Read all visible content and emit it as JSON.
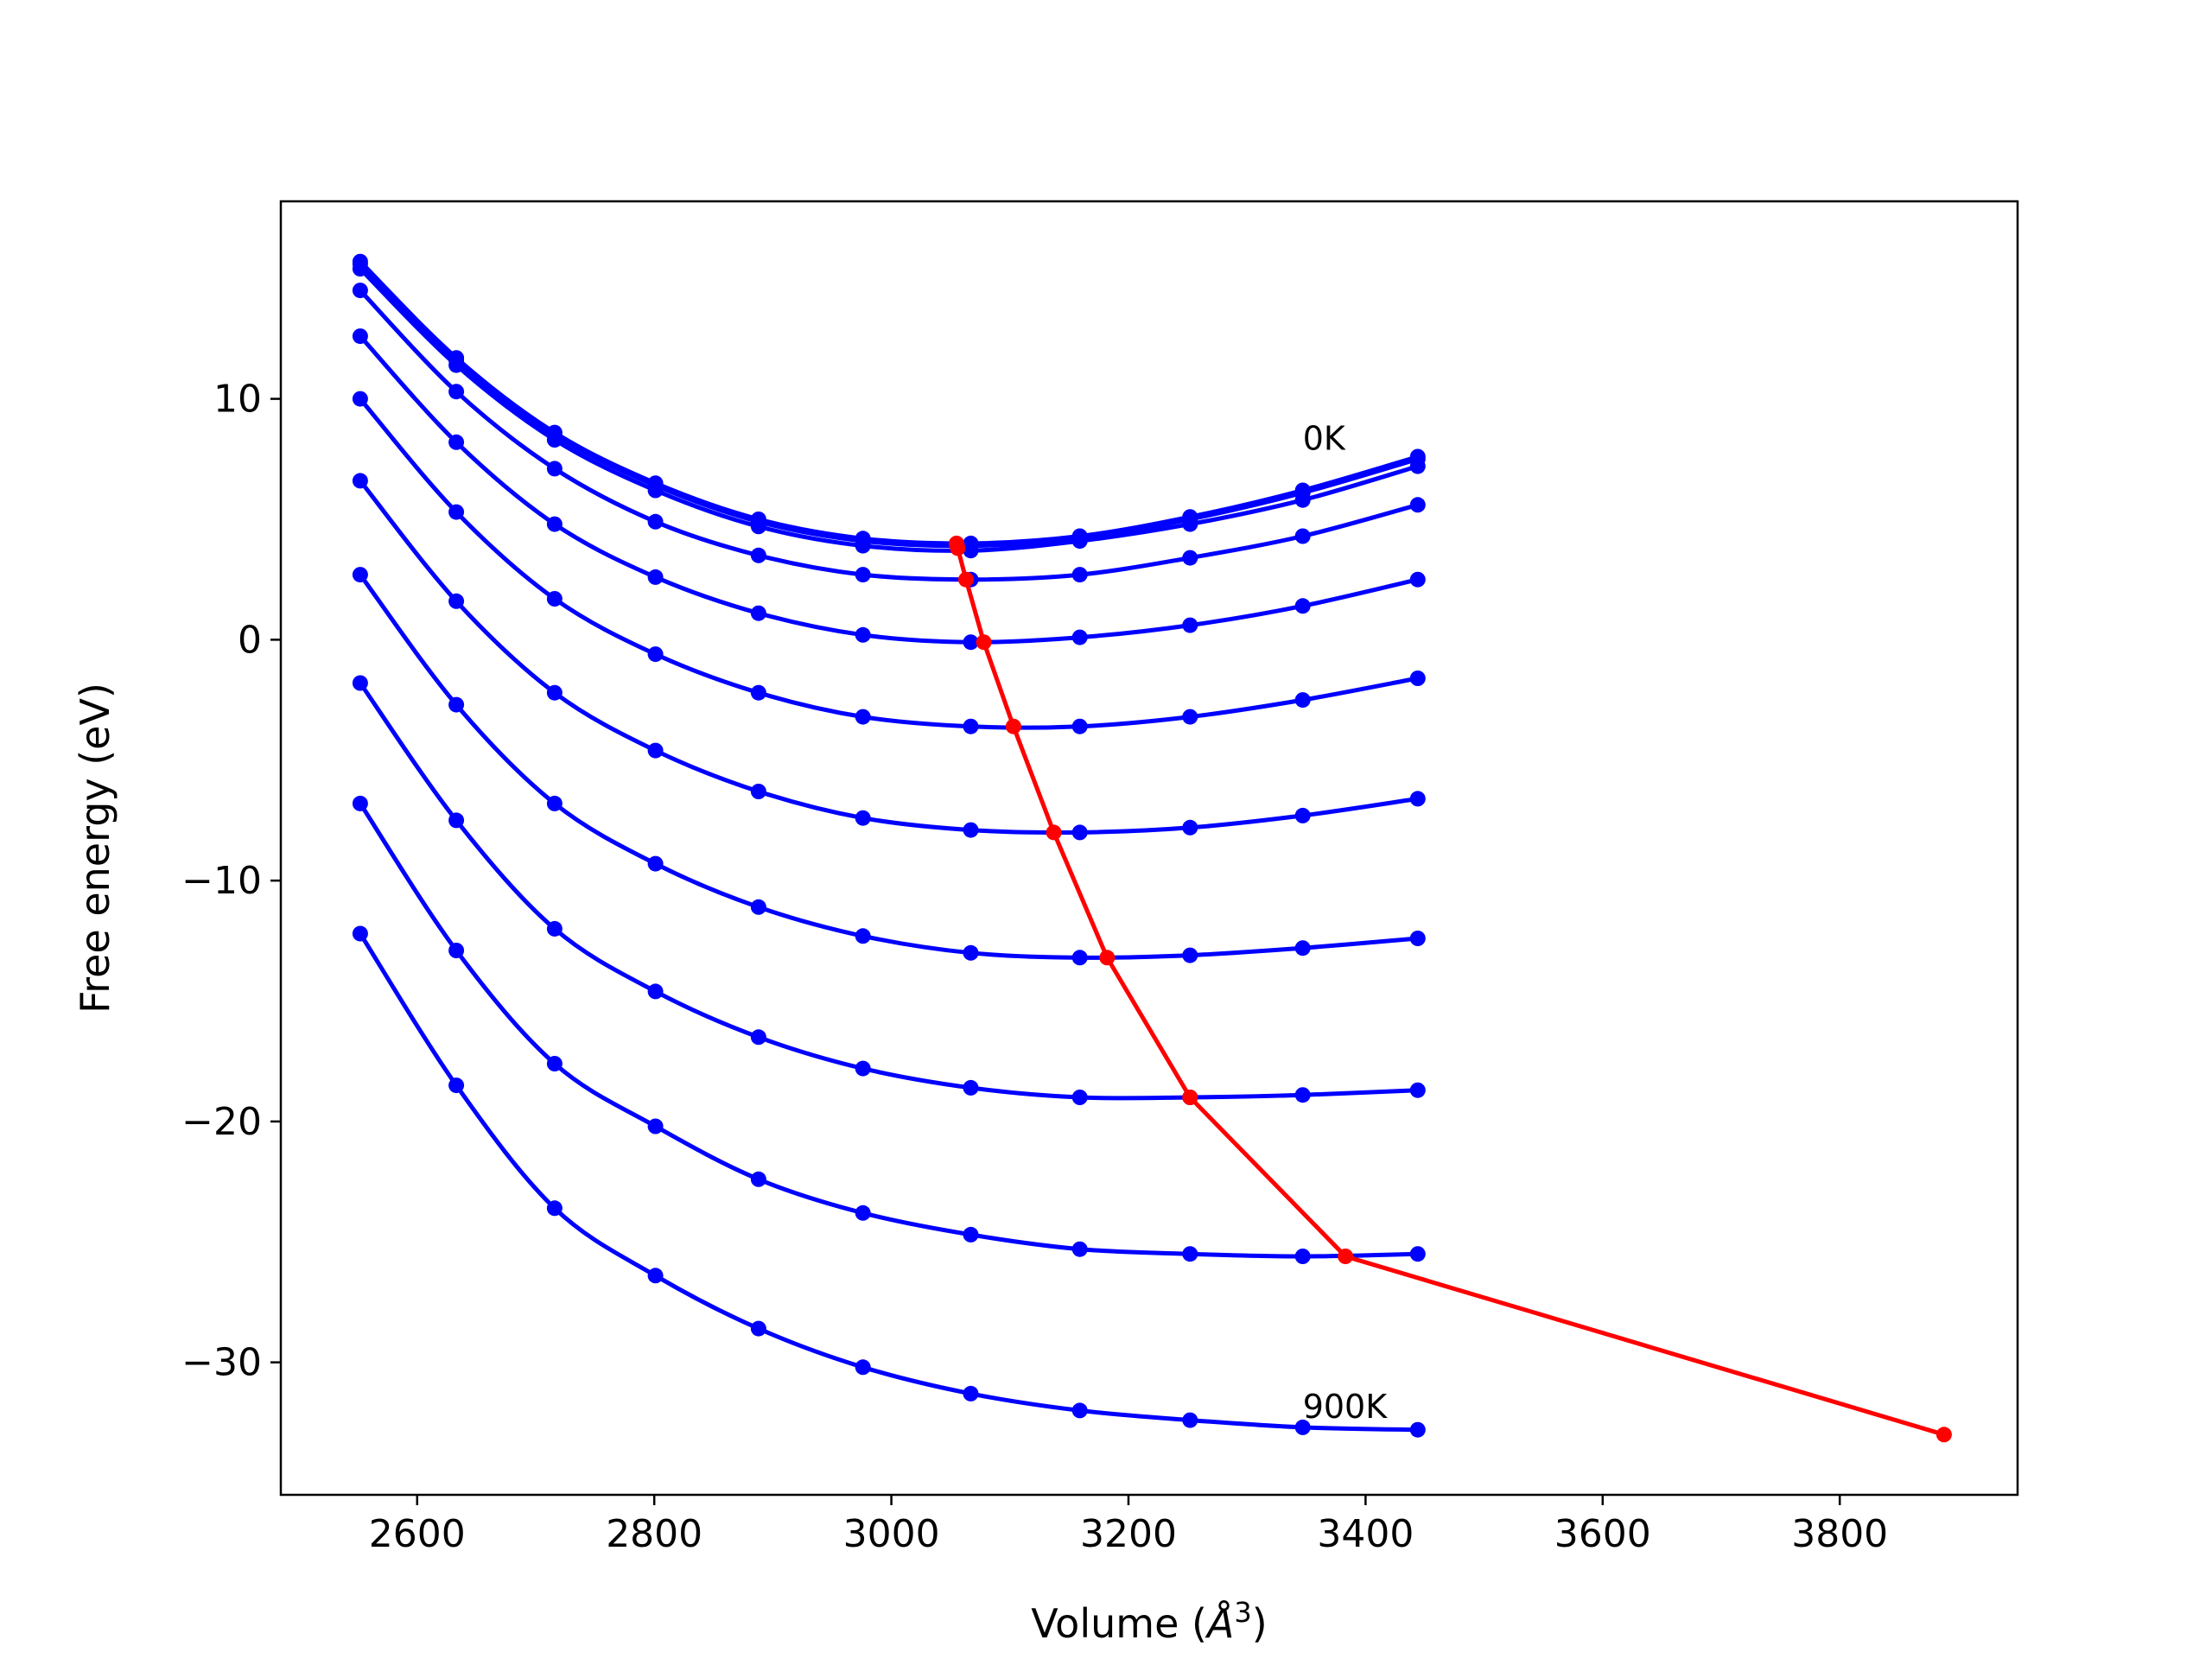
{
  "chart_data": {
    "type": "line",
    "xlabel": "Volume (",
    "xlabel_unit": "Å",
    "xlabel_sup": "3",
    "xlabel_close": ")",
    "ylabel": "Free energy (eV)",
    "xlim": [
      2485,
      3950
    ],
    "ylim": [
      -35.5,
      18.2
    ],
    "xticks": [
      2600,
      2800,
      3000,
      3200,
      3400,
      3600,
      3800
    ],
    "yticks": [
      10,
      0,
      -10,
      -20,
      -30
    ],
    "ytick_labels": [
      "10",
      "0",
      "−10",
      "−20",
      "−30"
    ],
    "grid": false,
    "volumes": [
      2552,
      2633,
      2716,
      2801,
      2888,
      2976,
      3067,
      3159,
      3252,
      3347,
      3444
    ],
    "series": [
      {
        "color": "#0000ff",
        "values": [
          15.7,
          11.7,
          8.6,
          6.5,
          5.0,
          4.2,
          4.0,
          4.3,
          5.1,
          6.2,
          7.6
        ]
      },
      {
        "color": "#0000ff",
        "values": [
          15.6,
          11.6,
          8.5,
          6.4,
          4.9,
          4.1,
          3.9,
          4.2,
          5.0,
          6.1,
          7.5
        ]
      },
      {
        "color": "#0000ff",
        "values": [
          15.4,
          11.4,
          8.3,
          6.2,
          4.7,
          3.9,
          3.7,
          4.1,
          4.8,
          5.8,
          7.2
        ]
      },
      {
        "color": "#0000ff",
        "values": [
          14.5,
          10.3,
          7.1,
          4.9,
          3.5,
          2.7,
          2.5,
          2.7,
          3.4,
          4.3,
          5.6
        ]
      },
      {
        "color": "#0000ff",
        "values": [
          12.6,
          8.2,
          4.8,
          2.6,
          1.1,
          0.2,
          -0.1,
          0.1,
          0.6,
          1.4,
          2.5
        ]
      },
      {
        "color": "#0000ff",
        "values": [
          10.0,
          5.3,
          1.7,
          -0.6,
          -2.2,
          -3.2,
          -3.6,
          -3.6,
          -3.2,
          -2.5,
          -1.6
        ]
      },
      {
        "color": "#0000ff",
        "values": [
          6.6,
          1.6,
          -2.2,
          -4.6,
          -6.3,
          -7.4,
          -7.9,
          -8.0,
          -7.8,
          -7.3,
          -6.6
        ]
      },
      {
        "color": "#0000ff",
        "values": [
          2.7,
          -2.7,
          -6.8,
          -9.3,
          -11.1,
          -12.3,
          -13.0,
          -13.2,
          -13.1,
          -12.8,
          -12.4
        ]
      },
      {
        "color": "#0000ff",
        "values": [
          -1.8,
          -7.5,
          -12.0,
          -14.6,
          -16.5,
          -17.8,
          -18.6,
          -19.0,
          -19.0,
          -18.9,
          -18.7
        ]
      },
      {
        "color": "#0000ff",
        "values": [
          -6.8,
          -12.9,
          -17.6,
          -20.2,
          -22.4,
          -23.8,
          -24.7,
          -25.3,
          -25.5,
          -25.6,
          -25.5
        ]
      },
      {
        "color": "#0000ff",
        "values": [
          -12.2,
          -18.5,
          -23.6,
          -26.4,
          -28.6,
          -30.2,
          -31.3,
          -32.0,
          -32.4,
          -32.7,
          -32.8
        ]
      }
    ],
    "minima": {
      "color": "#ff0000",
      "x": [
        3055,
        3056,
        3063,
        3078,
        3103,
        3137,
        3182,
        3252,
        3383,
        3888
      ],
      "y": [
        4.0,
        3.8,
        2.5,
        -0.1,
        -3.6,
        -8.0,
        -13.2,
        -19.0,
        -25.6,
        -33.0
      ]
    },
    "annotations": [
      {
        "text": "0K",
        "x": 3347,
        "y": 7.6
      },
      {
        "text": "900K",
        "x": 3347,
        "y": -32.6
      }
    ]
  }
}
